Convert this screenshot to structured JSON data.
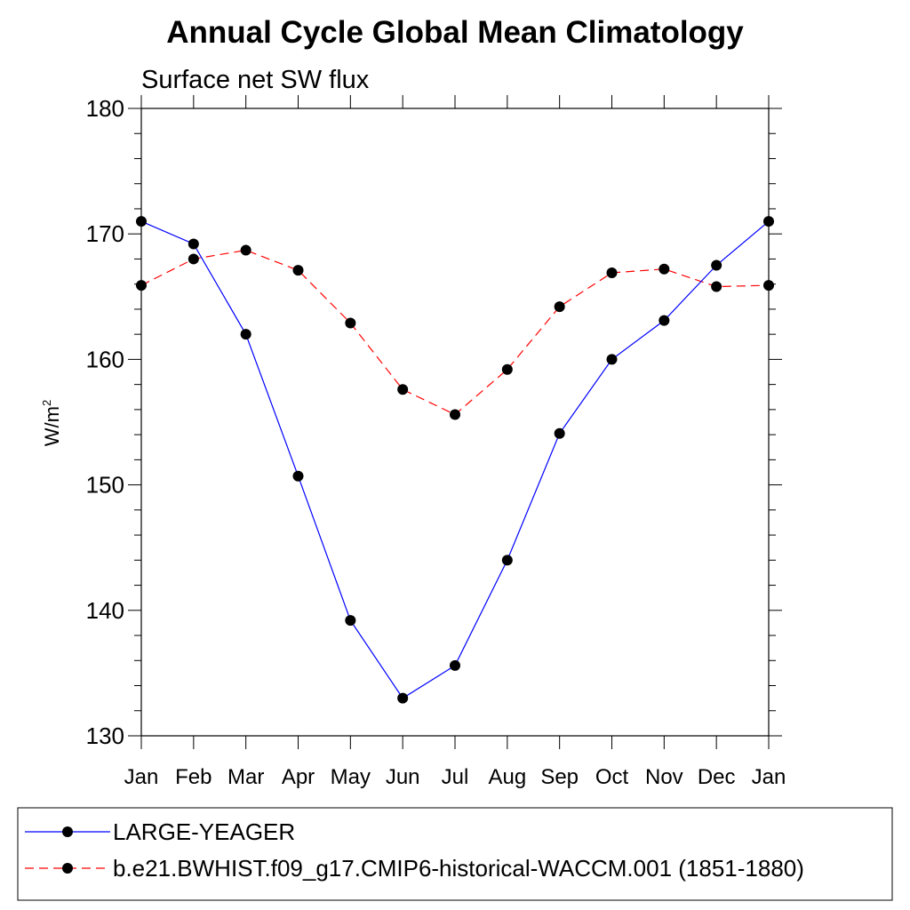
{
  "chart_data": {
    "type": "line",
    "title": "Annual Cycle Global Mean Climatology",
    "subtitle": "Surface net SW flux",
    "ylabel_base": "W/m",
    "ylabel_sup": "2",
    "categories": [
      "Jan",
      "Feb",
      "Mar",
      "Apr",
      "May",
      "Jun",
      "Jul",
      "Aug",
      "Sep",
      "Oct",
      "Nov",
      "Dec",
      "Jan"
    ],
    "ylim": [
      130,
      180
    ],
    "yticks": [
      130,
      140,
      150,
      160,
      170,
      180
    ],
    "series": [
      {
        "name": "LARGE-YEAGER",
        "color": "#0000ff",
        "dash": "solid",
        "values": [
          171.0,
          169.2,
          162.0,
          150.7,
          139.2,
          133.0,
          135.6,
          144.0,
          154.1,
          160.0,
          163.1,
          167.5,
          171.0
        ]
      },
      {
        "name": "b.e21.BWHIST.f09_g17.CMIP6-historical-WACCM.001 (1851-1880)",
        "color": "#ff0000",
        "dash": "dashed",
        "values": [
          165.9,
          168.0,
          168.7,
          167.1,
          162.9,
          157.6,
          155.6,
          159.2,
          164.2,
          166.9,
          167.2,
          165.8,
          165.9
        ]
      }
    ],
    "legend_position": "bottom",
    "grid": false
  }
}
